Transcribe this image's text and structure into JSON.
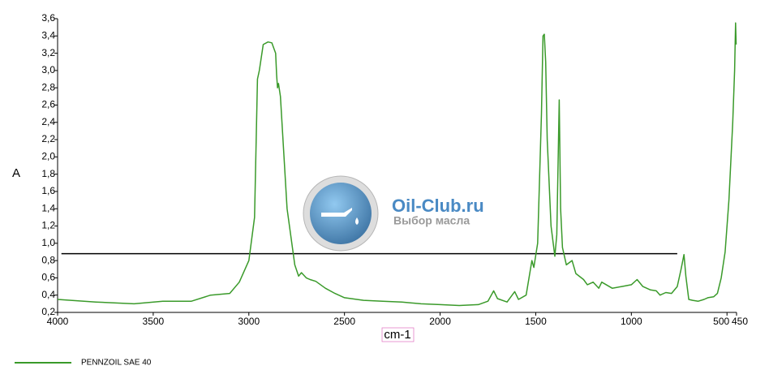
{
  "chart_data": {
    "type": "line",
    "x_label": "cm-1",
    "y_label": "A",
    "xlim": [
      4000,
      450
    ],
    "ylim": [
      0.2,
      3.6
    ],
    "xticks": [
      4000,
      3500,
      3000,
      2500,
      2000,
      1500,
      1000,
      500,
      450
    ],
    "yticks": [
      {
        "value": 0.2,
        "label": "0,2"
      },
      {
        "value": 0.4,
        "label": "0,4"
      },
      {
        "value": 0.6,
        "label": "0,6"
      },
      {
        "value": 0.8,
        "label": "0,8"
      },
      {
        "value": 1.0,
        "label": "1,0"
      },
      {
        "value": 1.2,
        "label": "1,2"
      },
      {
        "value": 1.4,
        "label": "1,4"
      },
      {
        "value": 1.6,
        "label": "1,6"
      },
      {
        "value": 1.8,
        "label": "1,8"
      },
      {
        "value": 2.0,
        "label": "2,0"
      },
      {
        "value": 2.2,
        "label": "2,2"
      },
      {
        "value": 2.4,
        "label": "2,4"
      },
      {
        "value": 2.6,
        "label": "2,6"
      },
      {
        "value": 2.8,
        "label": "2,8"
      },
      {
        "value": 3.0,
        "label": "3,0"
      },
      {
        "value": 3.2,
        "label": "3,2"
      },
      {
        "value": 3.4,
        "label": "3,4"
      },
      {
        "value": 3.6,
        "label": "3,6"
      }
    ],
    "series": [
      {
        "name": "PENNZOIL SAE 40",
        "color": "#3a9a2a",
        "x": [
          4000,
          3800,
          3600,
          3450,
          3300,
          3200,
          3100,
          3050,
          3000,
          2970,
          2955,
          2945,
          2925,
          2900,
          2880,
          2860,
          2855,
          2850,
          2845,
          2835,
          2800,
          2760,
          2740,
          2725,
          2700,
          2680,
          2650,
          2600,
          2550,
          2500,
          2400,
          2300,
          2200,
          2100,
          2000,
          1900,
          1800,
          1750,
          1720,
          1700,
          1650,
          1610,
          1590,
          1550,
          1520,
          1510,
          1490,
          1470,
          1462,
          1455,
          1448,
          1440,
          1420,
          1400,
          1390,
          1377,
          1370,
          1360,
          1340,
          1310,
          1290,
          1250,
          1230,
          1200,
          1170,
          1155,
          1100,
          1050,
          1000,
          970,
          940,
          900,
          870,
          850,
          820,
          790,
          760,
          740,
          725,
          715,
          700,
          680,
          650,
          620,
          600,
          570,
          550,
          530,
          510,
          490,
          470,
          460,
          455,
          452
        ],
        "values": [
          0.35,
          0.32,
          0.3,
          0.33,
          0.33,
          0.4,
          0.42,
          0.55,
          0.8,
          1.3,
          2.9,
          3.0,
          3.3,
          3.33,
          3.32,
          3.2,
          2.95,
          2.8,
          2.85,
          2.7,
          1.4,
          0.75,
          0.62,
          0.66,
          0.6,
          0.58,
          0.56,
          0.48,
          0.42,
          0.37,
          0.34,
          0.33,
          0.32,
          0.3,
          0.29,
          0.28,
          0.29,
          0.33,
          0.45,
          0.36,
          0.32,
          0.44,
          0.35,
          0.4,
          0.8,
          0.72,
          1.0,
          2.5,
          3.4,
          3.42,
          3.1,
          2.2,
          1.2,
          0.85,
          1.1,
          2.66,
          1.4,
          0.95,
          0.75,
          0.8,
          0.65,
          0.58,
          0.52,
          0.55,
          0.48,
          0.55,
          0.48,
          0.5,
          0.52,
          0.58,
          0.5,
          0.46,
          0.45,
          0.4,
          0.43,
          0.42,
          0.5,
          0.7,
          0.87,
          0.62,
          0.35,
          0.34,
          0.33,
          0.35,
          0.37,
          0.38,
          0.42,
          0.6,
          0.9,
          1.5,
          2.4,
          3.0,
          3.55,
          3.3
        ]
      }
    ],
    "reference_line": {
      "y": 0.88,
      "x": [
        3980,
        760
      ],
      "color": "#000000"
    }
  },
  "watermark": {
    "title": "Oil-Club.ru",
    "subtitle": "Выбор масла"
  }
}
